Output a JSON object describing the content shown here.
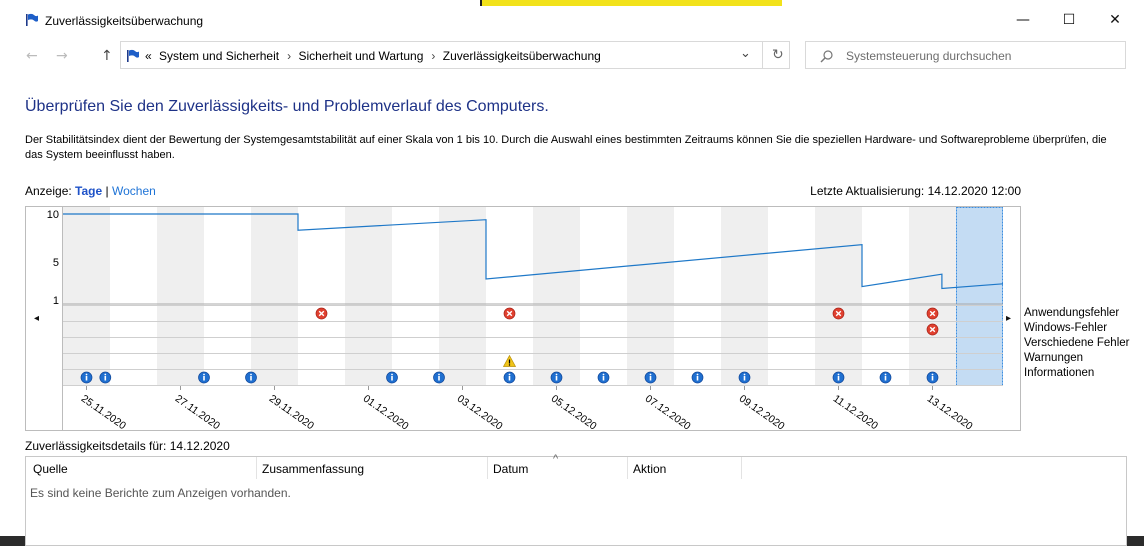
{
  "window": {
    "title": "Zuverlässigkeitsüberwachung",
    "minimize_glyph": "—",
    "maximize_glyph": "☐",
    "close_glyph": "✕"
  },
  "nav": {
    "back_glyph": "←",
    "forward_glyph": "→",
    "up_glyph": "↑",
    "overflow_glyph": "«",
    "breadcrumbs": [
      "System und Sicherheit",
      "Sicherheit und Wartung",
      "Zuverlässigkeitsüberwachung"
    ],
    "separator": "›",
    "dropdown_glyph": "⌄",
    "refresh_glyph": "↻",
    "search_placeholder": "Systemsteuerung durchsuchen"
  },
  "page": {
    "heading": "Überprüfen Sie den Zuverlässigkeits- und Problemverlauf des Computers.",
    "description": "Der Stabilitätsindex dient der Bewertung der Systemgesamtstabilität auf einer Skala von 1 bis 10. Durch die Auswahl eines bestimmten Zeitraums können Sie die speziellen Hardware- und Softwareprobleme überprüfen, die das System beeinflusst haben.",
    "view_label": "Anzeige:",
    "view_days": "Tage",
    "view_separator": "|",
    "view_weeks": "Wochen",
    "last_update": "Letzte Aktualisierung: 14.12.2020 12:00"
  },
  "chart_data": {
    "type": "line",
    "y_ticks": [
      "10",
      "5",
      "1"
    ],
    "ylim": [
      1,
      10
    ],
    "dates": [
      "25.11.2020",
      "26.11.2020",
      "27.11.2020",
      "28.11.2020",
      "29.11.2020",
      "30.11.2020",
      "01.12.2020",
      "02.12.2020",
      "03.12.2020",
      "04.12.2020",
      "05.12.2020",
      "06.12.2020",
      "07.12.2020",
      "08.12.2020",
      "09.12.2020",
      "10.12.2020",
      "11.12.2020",
      "12.12.2020",
      "13.12.2020",
      "14.12.2020"
    ],
    "x_tick_labels": [
      "25.11.2020",
      "27.11.2020",
      "29.11.2020",
      "01.12.2020",
      "03.12.2020",
      "05.12.2020",
      "07.12.2020",
      "09.12.2020",
      "11.12.2020",
      "13.12.2020"
    ],
    "stability_index": [
      {
        "day": 0,
        "value": 10
      },
      {
        "day": 5,
        "value": 10
      },
      {
        "day": 5,
        "value": 8.3
      },
      {
        "day": 9,
        "value": 9.4
      },
      {
        "day": 9,
        "value": 3.2
      },
      {
        "day": 17,
        "value": 6.8
      },
      {
        "day": 17,
        "value": 2.4
      },
      {
        "day": 18.7,
        "value": 3.7
      },
      {
        "day": 18.7,
        "value": 2.2
      },
      {
        "day": 20,
        "value": 2.7
      }
    ],
    "series_colors": {
      "line": "#1e78c8",
      "selected": "#c4dcf3"
    },
    "selected_day": 19,
    "rows": [
      "Anwendungsfehler",
      "Windows-Fehler",
      "Verschiedene Fehler",
      "Warnungen",
      "Informationen"
    ],
    "events": {
      "Anwendungsfehler": [
        5,
        9,
        16,
        18
      ],
      "Windows-Fehler": [
        18
      ],
      "Verschiedene Fehler": [],
      "Warnungen": [
        9
      ],
      "Informationen": [
        0,
        0.4,
        2.5,
        3.5,
        6.5,
        7.5,
        9,
        10,
        11,
        12,
        13,
        14,
        16,
        17,
        18
      ]
    },
    "left_arrow_glyph": "◂",
    "right_arrow_glyph": "▸"
  },
  "details": {
    "title": "Zuverlässigkeitsdetails für: 14.12.2020",
    "columns": [
      "Quelle",
      "Zusammenfassung",
      "Datum",
      "Aktion"
    ],
    "sort_glyph": "^",
    "empty_message": "Es sind keine Berichte zum Anzeigen vorhanden."
  }
}
